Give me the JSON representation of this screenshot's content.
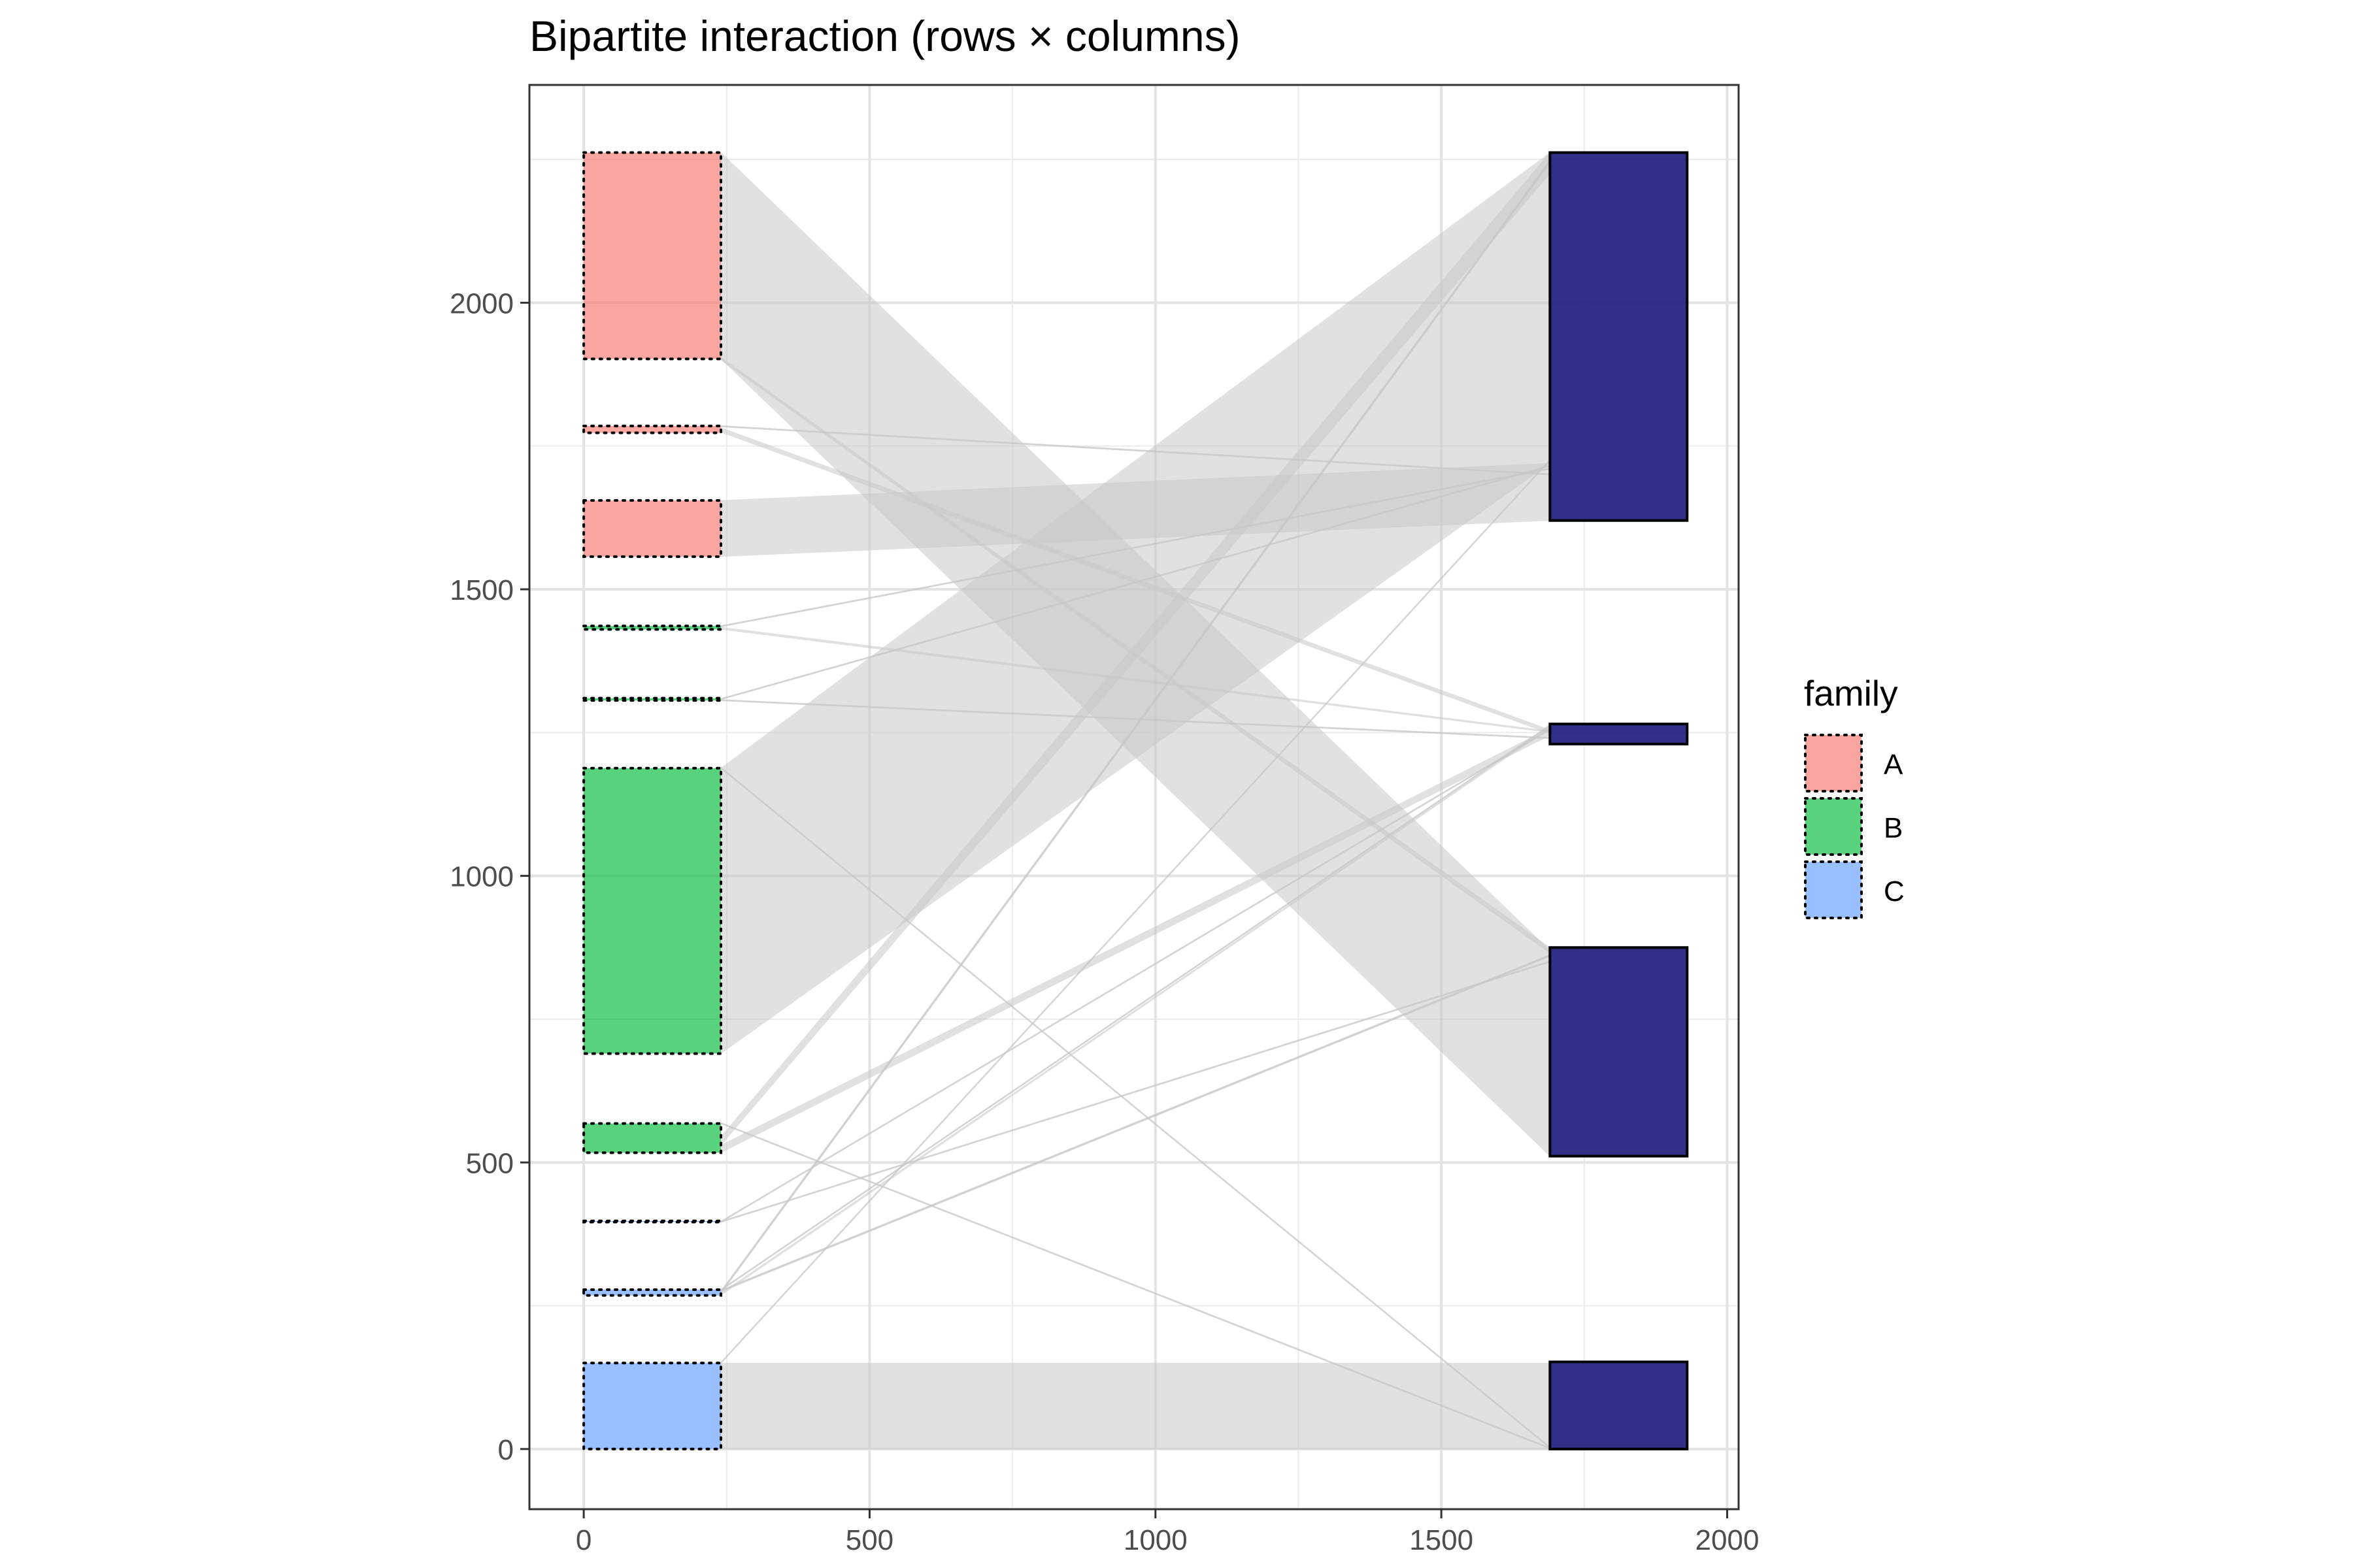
{
  "chart_data": {
    "type": "bipartite",
    "title": "Bipartite interaction (rows × columns)",
    "xlabel": "",
    "ylabel": "",
    "xlim": [
      -95,
      2020
    ],
    "ylim": [
      -105,
      2380
    ],
    "x_ticks": [
      0,
      500,
      1000,
      1500,
      2000
    ],
    "y_ticks": [
      0,
      500,
      1000,
      1500,
      2000
    ],
    "grid": true,
    "legend": {
      "title": "family",
      "position": "right",
      "entries": [
        {
          "label": "A",
          "color": "#F8766D"
        },
        {
          "label": "B",
          "color": "#00BA38"
        },
        {
          "label": "C",
          "color": "#619CFF"
        }
      ]
    },
    "colors": {
      "left_box_alpha": 0.65,
      "right_box": "#1A1A7A",
      "link": "#C8C8C8"
    },
    "left_x": [
      0,
      240
    ],
    "right_x": [
      1690,
      1930
    ],
    "left_boxes": [
      {
        "family": "C",
        "y0": 0,
        "y1": 150
      },
      {
        "family": "C",
        "y0": 268,
        "y1": 278
      },
      {
        "family": "C",
        "y0": 396,
        "y1": 398
      },
      {
        "family": "B",
        "y0": 517,
        "y1": 568
      },
      {
        "family": "B",
        "y0": 690,
        "y1": 1188
      },
      {
        "family": "B",
        "y0": 1306,
        "y1": 1310
      },
      {
        "family": "B",
        "y0": 1430,
        "y1": 1436
      },
      {
        "family": "A",
        "y0": 1557,
        "y1": 1655
      },
      {
        "family": "A",
        "y0": 1773,
        "y1": 1785
      },
      {
        "family": "A",
        "y0": 1902,
        "y1": 2262
      }
    ],
    "right_boxes": [
      {
        "y0": 0,
        "y1": 152
      },
      {
        "y0": 511,
        "y1": 875
      },
      {
        "y0": 1230,
        "y1": 1265
      },
      {
        "y0": 1620,
        "y1": 2262
      }
    ],
    "links": [
      {
        "l0": 0,
        "l1": 150,
        "r0": 0,
        "r1": 150
      },
      {
        "l0": 1902,
        "l1": 2262,
        "r0": 511,
        "r1": 870
      },
      {
        "l0": 690,
        "l1": 1188,
        "r0": 1720,
        "r1": 2262
      },
      {
        "l0": 1557,
        "l1": 1655,
        "r0": 1620,
        "r1": 1720
      },
      {
        "l0": 530,
        "l1": 545,
        "r0": 2225,
        "r1": 2262
      },
      {
        "l0": 517,
        "l1": 530,
        "r0": 1245,
        "r1": 1258
      },
      {
        "l0": 1900,
        "l1": 1905,
        "r0": 865,
        "r1": 875
      },
      {
        "l0": 1774,
        "l1": 1782,
        "r0": 1248,
        "r1": 1255
      },
      {
        "l0": 1430,
        "l1": 1434,
        "r0": 1250,
        "r1": 1253
      },
      {
        "l0": 268,
        "l1": 272,
        "r0": 1258,
        "r1": 1261
      },
      {
        "l0": 272,
        "l1": 275,
        "r0": 2245,
        "r1": 2248
      },
      {
        "l0": 275,
        "l1": 277,
        "r0": 860,
        "r1": 862
      },
      {
        "l0": 396,
        "l1": 397,
        "r0": 1255,
        "r1": 1256
      },
      {
        "l0": 396,
        "l1": 397,
        "r0": 850,
        "r1": 851
      },
      {
        "l0": 1306,
        "l1": 1307,
        "r0": 1240,
        "r1": 1241
      },
      {
        "l0": 1308,
        "l1": 1309,
        "r0": 1715,
        "r1": 1716
      },
      {
        "l0": 1435,
        "l1": 1436,
        "r0": 1710,
        "r1": 1711
      },
      {
        "l0": 1784,
        "l1": 1785,
        "r0": 1700,
        "r1": 1701
      },
      {
        "l0": 568,
        "l1": 569,
        "r0": 1,
        "r1": 2
      },
      {
        "l0": 1188,
        "l1": 1189,
        "r0": 2,
        "r1": 3
      },
      {
        "l0": 150,
        "l1": 151,
        "r0": 1725,
        "r1": 1726
      },
      {
        "l0": 277,
        "l1": 278,
        "r0": 1262,
        "r1": 1263
      }
    ]
  }
}
